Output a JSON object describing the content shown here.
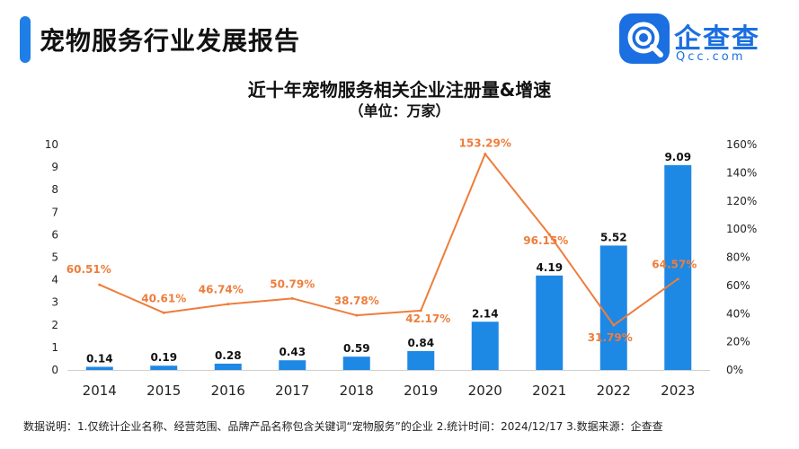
{
  "header": {
    "title": "宠物服务行业发展报告"
  },
  "brand": {
    "name": "企查查",
    "domain": "Qcc.com",
    "logo_icon": "qcc-magnifier-logo",
    "color": "#1b6fe0"
  },
  "footnote": "数据说明：1.仅统计企业名称、经营范围、品牌产品名称包含关键词“宠物服务”的企业   2.统计时间：2024/12/17   3.数据来源：企查查",
  "colors": {
    "bar": "#1e88e5",
    "line": "#ee7d3b",
    "accent": "#1e7fe6"
  },
  "chart_data": {
    "type": "bar",
    "title": "近十年宠物服务相关企业注册量&增速",
    "subtitle": "（单位：万家）",
    "categories": [
      "2014",
      "2015",
      "2016",
      "2017",
      "2018",
      "2019",
      "2020",
      "2021",
      "2022",
      "2023"
    ],
    "series": [
      {
        "type": "bar",
        "axis": "left",
        "values": [
          0.14,
          0.19,
          0.28,
          0.43,
          0.59,
          0.84,
          2.14,
          4.19,
          5.52,
          9.09
        ],
        "labels": [
          "0.14",
          "0.19",
          "0.28",
          "0.43",
          "0.59",
          "0.84",
          "2.14",
          "4.19",
          "5.52",
          "9.09"
        ]
      },
      {
        "type": "line",
        "axis": "right",
        "values": [
          60.51,
          40.61,
          46.74,
          50.79,
          38.78,
          42.17,
          153.29,
          96.15,
          31.79,
          64.57
        ],
        "labels": [
          "60.51%",
          "40.61%",
          "46.74%",
          "50.79%",
          "38.78%",
          "42.17%",
          "153.29%",
          "96.15%",
          "31.79%",
          "64.57%"
        ]
      }
    ],
    "y_left": {
      "min": 0,
      "max": 10,
      "ticks": [
        "0",
        "1",
        "2",
        "3",
        "4",
        "5",
        "6",
        "7",
        "8",
        "9",
        "10"
      ]
    },
    "y_right": {
      "min": 0,
      "max": 160,
      "ticks": [
        "0%",
        "20%",
        "40%",
        "60%",
        "80%",
        "100%",
        "120%",
        "140%",
        "160%"
      ]
    },
    "grid": false,
    "legend": "none"
  }
}
